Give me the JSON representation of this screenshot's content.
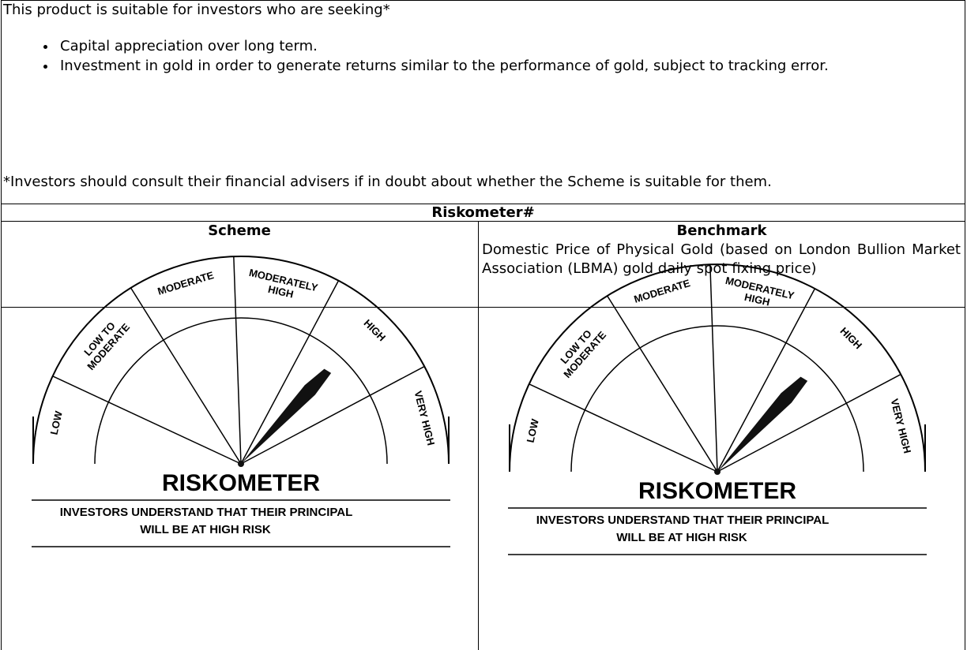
{
  "intro": "This product is suitable for investors who are seeking*",
  "bullets": [
    "Capital appreciation over long term.",
    "Investment in gold in order to generate returns similar to the performance of gold, subject to tracking error."
  ],
  "note": "*Investors should consult their financial advisers if in doubt about whether the Scheme is suitable for them.",
  "table": {
    "title": "Riskometer#",
    "headers": [
      "Scheme",
      "Benchmark"
    ],
    "benchmark_description": "Domestic Price of Physical Gold (based on London Bullion Market Association (LBMA) gold daily spot fixing price)"
  },
  "riskometers": [
    {
      "segments": [
        [
          "LOW"
        ],
        [
          "LOW TO",
          "MODERATE"
        ],
        [
          "MODERATE"
        ],
        [
          "MODERATELY",
          "HIGH"
        ],
        [
          "HIGH"
        ],
        [
          "VERY HIGH"
        ]
      ],
      "title": "RISKOMETER",
      "caption": [
        "INVESTORS UNDERSTAND THAT THEIR PRINCIPAL",
        "WILL BE AT HIGH RISK"
      ]
    },
    {
      "segments": [
        [
          "LOW"
        ],
        [
          "LOW TO",
          "MODERATE"
        ],
        [
          "MODERATE"
        ],
        [
          "MODERATELY",
          "HIGH"
        ],
        [
          "HIGH"
        ],
        [
          "VERY HIGH"
        ]
      ],
      "title": "RISKOMETER",
      "caption": [
        "INVESTORS UNDERSTAND THAT THEIR PRINCIPAL",
        "WILL BE AT HIGH RISK"
      ]
    }
  ]
}
